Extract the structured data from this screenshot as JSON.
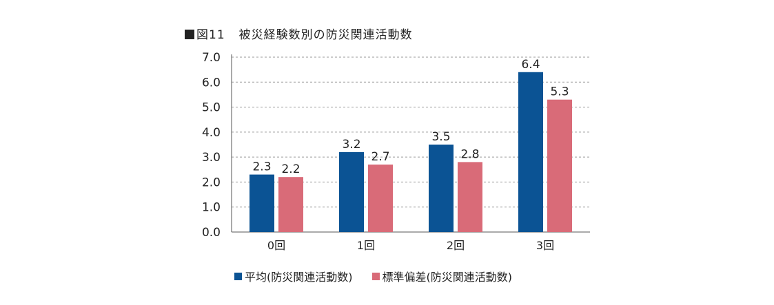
{
  "title": {
    "figure_label": "図11",
    "text": "被災経験数別の防災関連活動数"
  },
  "chart_data": {
    "type": "bar",
    "title": "図11 被災経験数別の防災関連活動数",
    "xlabel": "",
    "ylabel": "",
    "categories": [
      "0回",
      "1回",
      "2回",
      "3回"
    ],
    "series": [
      {
        "name": "平均(防災関連活動数)",
        "color": "#0b5394",
        "values": [
          2.3,
          3.2,
          3.5,
          6.4
        ],
        "labels": [
          "2.3",
          "3.2",
          "3.5",
          "6.4"
        ]
      },
      {
        "name": "標準偏差(防災関連活動数)",
        "color": "#d96b78",
        "values": [
          2.2,
          2.7,
          2.8,
          5.3
        ],
        "labels": [
          "2.2",
          "2.7",
          "2.8",
          "5.3"
        ]
      }
    ],
    "ylim": [
      0,
      7
    ],
    "yticks": [
      "0.0",
      "1.0",
      "2.0",
      "3.0",
      "4.0",
      "5.0",
      "6.0",
      "7.0"
    ],
    "grid": true,
    "legend_position": "bottom"
  }
}
